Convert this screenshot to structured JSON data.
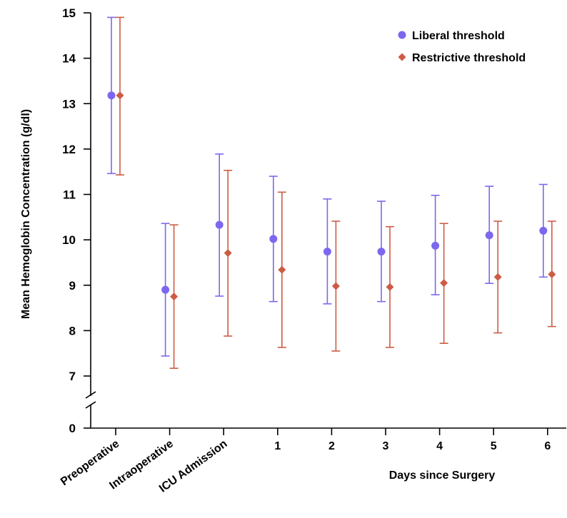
{
  "chart_data": {
    "type": "scatter",
    "categories": [
      "Preoperative",
      "Intraoperative",
      "ICU Admission",
      "1",
      "2",
      "3",
      "4",
      "5",
      "6"
    ],
    "xlabel": "Days since Surgery",
    "ylabel": "Mean Hemoglobin Concentration (g/dl)",
    "yticks": [
      15,
      14,
      13,
      12,
      11,
      10,
      9,
      8,
      7
    ],
    "ybreak_label": "0",
    "ylim": [
      7,
      15
    ],
    "axis_break": true,
    "legend_position": "top-right",
    "series": [
      {
        "name": "Liberal threshold",
        "color": "#7b68ee",
        "marker": "circle",
        "mean": [
          13.18,
          8.9,
          10.33,
          10.02,
          9.74,
          9.74,
          9.87,
          10.1,
          10.2
        ],
        "lower": [
          11.46,
          7.44,
          8.76,
          8.64,
          8.59,
          8.64,
          8.79,
          9.04,
          9.18
        ],
        "upper": [
          14.9,
          10.36,
          11.89,
          11.4,
          10.9,
          10.85,
          10.98,
          11.18,
          11.22
        ]
      },
      {
        "name": "Restrictive threshold",
        "color": "#cd5c45",
        "marker": "diamond",
        "mean": [
          13.18,
          8.75,
          9.71,
          9.34,
          8.98,
          8.96,
          9.05,
          9.18,
          9.24
        ],
        "lower": [
          11.43,
          7.17,
          7.88,
          7.63,
          7.55,
          7.63,
          7.72,
          7.95,
          8.09
        ],
        "upper": [
          14.9,
          10.33,
          11.53,
          11.05,
          10.41,
          10.29,
          10.36,
          10.41,
          10.41
        ]
      }
    ]
  }
}
